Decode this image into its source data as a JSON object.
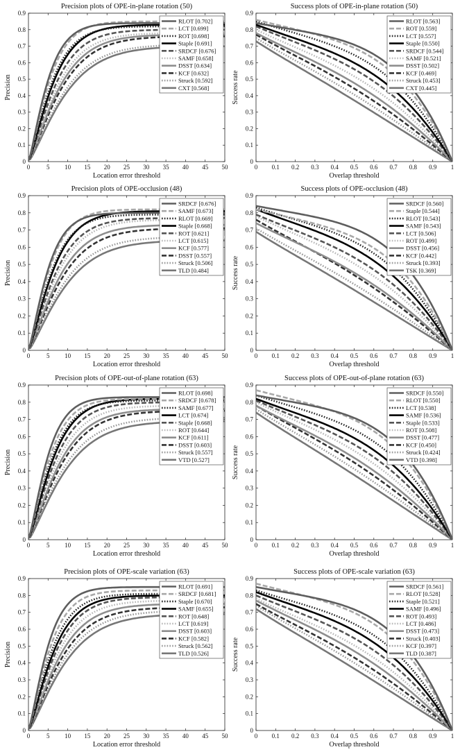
{
  "chart_data": [
    {
      "type": "line",
      "title": "Precision plots of OPE-in-plane rotation (50)",
      "xlabel": "Location error threshold",
      "ylabel": "Precision",
      "xlim": [
        0,
        50
      ],
      "ylim": [
        0,
        0.9
      ],
      "xticks": [
        "0",
        "5",
        "10",
        "15",
        "20",
        "25",
        "30",
        "35",
        "40",
        "45",
        "50"
      ],
      "yticks": [
        "0",
        "0.1",
        "0.2",
        "0.3",
        "0.4",
        "0.5",
        "0.6",
        "0.7",
        "0.8",
        "0.9"
      ],
      "legend_position": "top-right",
      "series": [
        {
          "name": "RLOT [0.702]",
          "color": "#5e5e5e",
          "dash": "solid",
          "final": 0.84
        },
        {
          "name": "LCT [0.699]",
          "color": "#a8a8a8",
          "dash": "dash",
          "final": 0.85
        },
        {
          "name": "ROT [0.698]",
          "color": "#262626",
          "dash": "dot",
          "final": 0.82
        },
        {
          "name": "Staple [0.691]",
          "color": "#000000",
          "dash": "solid",
          "final": 0.83
        },
        {
          "name": "SRDCF [0.676]",
          "color": "#555555",
          "dash": "dash",
          "final": 0.8
        },
        {
          "name": "SAMF [0.658]",
          "color": "#b8b8b8",
          "dash": "dot",
          "final": 0.78
        },
        {
          "name": "DSST [0.634]",
          "color": "#8e8e8e",
          "dash": "solid",
          "final": 0.77
        },
        {
          "name": "KCF [0.632]",
          "color": "#333333",
          "dash": "dash",
          "final": 0.76
        },
        {
          "name": "Struck [0.592]",
          "color": "#9a9a9a",
          "dash": "dot",
          "final": 0.71
        },
        {
          "name": "CXT [0.568]",
          "color": "#777777",
          "dash": "solid",
          "final": 0.7
        }
      ]
    },
    {
      "type": "line",
      "title": "Success plots of OPE-in-plane rotation (50)",
      "xlabel": "Overlap threshold",
      "ylabel": "Success rate",
      "xlim": [
        0,
        1
      ],
      "ylim": [
        0,
        0.9
      ],
      "xticks": [
        "0",
        "0.1",
        "0.2",
        "0.3",
        "0.4",
        "0.5",
        "0.6",
        "0.7",
        "0.8",
        "0.9",
        "1"
      ],
      "yticks": [
        "0",
        "0.1",
        "0.2",
        "0.3",
        "0.4",
        "0.5",
        "0.6",
        "0.7",
        "0.8",
        "0.9"
      ],
      "legend_position": "top-right",
      "series": [
        {
          "name": "RLOT [0.563]",
          "color": "#5e5e5e",
          "dash": "solid",
          "start": 0.84
        },
        {
          "name": "ROT [0.559]",
          "color": "#a8a8a8",
          "dash": "dash",
          "start": 0.86
        },
        {
          "name": "LCT [0.557]",
          "color": "#262626",
          "dash": "dot",
          "start": 0.85
        },
        {
          "name": "Staple [0.550]",
          "color": "#000000",
          "dash": "solid",
          "start": 0.83
        },
        {
          "name": "SRDCF [0.544]",
          "color": "#555555",
          "dash": "dash",
          "start": 0.82
        },
        {
          "name": "SAMF [0.521]",
          "color": "#b8b8b8",
          "dash": "dot",
          "start": 0.8
        },
        {
          "name": "DSST [0.502]",
          "color": "#8e8e8e",
          "dash": "solid",
          "start": 0.78
        },
        {
          "name": "KCF [0.469]",
          "color": "#333333",
          "dash": "dash",
          "start": 0.77
        },
        {
          "name": "Struck [0.453]",
          "color": "#9a9a9a",
          "dash": "dot",
          "start": 0.75
        },
        {
          "name": "CXT [0.445]",
          "color": "#777777",
          "dash": "solid",
          "start": 0.73
        }
      ]
    },
    {
      "type": "line",
      "title": "Precision plots of OPE-occlusion (48)",
      "xlabel": "Location error threshold",
      "ylabel": "Precision",
      "xlim": [
        0,
        50
      ],
      "ylim": [
        0,
        0.9
      ],
      "xticks": [
        "0",
        "5",
        "10",
        "15",
        "20",
        "25",
        "30",
        "35",
        "40",
        "45",
        "50"
      ],
      "yticks": [
        "0",
        "0.1",
        "0.2",
        "0.3",
        "0.4",
        "0.5",
        "0.6",
        "0.7",
        "0.8",
        "0.9"
      ],
      "legend_position": "top-right",
      "series": [
        {
          "name": "SRDCF [0.676]",
          "color": "#5e5e5e",
          "dash": "solid",
          "final": 0.8
        },
        {
          "name": "SAMF [0.673]",
          "color": "#a8a8a8",
          "dash": "dash",
          "final": 0.82
        },
        {
          "name": "RLOT [0.669]",
          "color": "#262626",
          "dash": "dot",
          "final": 0.79
        },
        {
          "name": "Staple [0.668]",
          "color": "#000000",
          "dash": "solid",
          "final": 0.81
        },
        {
          "name": "ROT [0.621]",
          "color": "#555555",
          "dash": "dash",
          "final": 0.77
        },
        {
          "name": "LCT [0.615]",
          "color": "#b8b8b8",
          "dash": "dot",
          "final": 0.76
        },
        {
          "name": "KCF [0.577]",
          "color": "#8e8e8e",
          "dash": "solid",
          "final": 0.73
        },
        {
          "name": "DSST [0.557]",
          "color": "#333333",
          "dash": "dash",
          "final": 0.71
        },
        {
          "name": "Struck [0.506]",
          "color": "#9a9a9a",
          "dash": "dot",
          "final": 0.66
        },
        {
          "name": "TLD [0.484]",
          "color": "#777777",
          "dash": "solid",
          "final": 0.64
        }
      ]
    },
    {
      "type": "line",
      "title": "Success plots of OPE-occlusion (48)",
      "xlabel": "Overlap threshold",
      "ylabel": "Success rate",
      "xlim": [
        0,
        1
      ],
      "ylim": [
        0,
        0.9
      ],
      "xticks": [
        "0",
        "0.1",
        "0.2",
        "0.3",
        "0.4",
        "0.5",
        "0.6",
        "0.7",
        "0.8",
        "0.9",
        "1"
      ],
      "yticks": [
        "0",
        "0.1",
        "0.2",
        "0.3",
        "0.4",
        "0.5",
        "0.6",
        "0.7",
        "0.8",
        "0.9"
      ],
      "legend_position": "top-right",
      "series": [
        {
          "name": "SRDCF [0.560]",
          "color": "#5e5e5e",
          "dash": "solid",
          "start": 0.84
        },
        {
          "name": "Staple [0.544]",
          "color": "#a8a8a8",
          "dash": "dash",
          "start": 0.82
        },
        {
          "name": "RLOT [0.543]",
          "color": "#262626",
          "dash": "dot",
          "start": 0.83
        },
        {
          "name": "SAMF [0.543]",
          "color": "#000000",
          "dash": "solid",
          "start": 0.82
        },
        {
          "name": "LCT [0.506]",
          "color": "#555555",
          "dash": "dash",
          "start": 0.79
        },
        {
          "name": "ROT [0.499]",
          "color": "#b8b8b8",
          "dash": "dot",
          "start": 0.78
        },
        {
          "name": "DSST [0.456]",
          "color": "#8e8e8e",
          "dash": "solid",
          "start": 0.74
        },
        {
          "name": "KCF [0.442]",
          "color": "#333333",
          "dash": "dash",
          "start": 0.76
        },
        {
          "name": "Struck [0.393]",
          "color": "#9a9a9a",
          "dash": "dot",
          "start": 0.71
        },
        {
          "name": "TSK [0.369]",
          "color": "#777777",
          "dash": "solid",
          "start": 0.69
        }
      ]
    },
    {
      "type": "line",
      "title": "Precision plots of OPE-out-of-plane rotation (63)",
      "xlabel": "Location error threshold",
      "ylabel": "Precision",
      "xlim": [
        0,
        50
      ],
      "ylim": [
        0,
        0.9
      ],
      "xticks": [
        "0",
        "5",
        "10",
        "15",
        "20",
        "25",
        "30",
        "35",
        "40",
        "45",
        "50"
      ],
      "yticks": [
        "0",
        "0.1",
        "0.2",
        "0.3",
        "0.4",
        "0.5",
        "0.6",
        "0.7",
        "0.8",
        "0.9"
      ],
      "legend_position": "top-right",
      "series": [
        {
          "name": "RLOT [0.698]",
          "color": "#5e5e5e",
          "dash": "solid",
          "final": 0.83
        },
        {
          "name": "SRDCF [0.678]",
          "color": "#a8a8a8",
          "dash": "dash",
          "final": 0.82
        },
        {
          "name": "SAMF [0.677]",
          "color": "#262626",
          "dash": "dot",
          "final": 0.81
        },
        {
          "name": "LCT [0.674]",
          "color": "#000000",
          "dash": "solid",
          "final": 0.82
        },
        {
          "name": "Staple [0.668]",
          "color": "#555555",
          "dash": "dash",
          "final": 0.8
        },
        {
          "name": "ROT [0.644]",
          "color": "#b8b8b8",
          "dash": "dot",
          "final": 0.78
        },
        {
          "name": "KCF [0.611]",
          "color": "#8e8e8e",
          "dash": "solid",
          "final": 0.76
        },
        {
          "name": "DSST [0.603]",
          "color": "#333333",
          "dash": "dash",
          "final": 0.75
        },
        {
          "name": "Struck [0.557]",
          "color": "#9a9a9a",
          "dash": "dot",
          "final": 0.71
        },
        {
          "name": "VTD [0.527]",
          "color": "#777777",
          "dash": "solid",
          "final": 0.69
        }
      ]
    },
    {
      "type": "line",
      "title": "Success plots of OPE-out-of-plane rotation (63)",
      "xlabel": "Overlap threshold",
      "ylabel": "Success rate",
      "xlim": [
        0,
        1
      ],
      "ylim": [
        0,
        0.9
      ],
      "xticks": [
        "0",
        "0.1",
        "0.2",
        "0.3",
        "0.4",
        "0.5",
        "0.6",
        "0.7",
        "0.8",
        "0.9",
        "1"
      ],
      "yticks": [
        "0",
        "0.1",
        "0.2",
        "0.3",
        "0.4",
        "0.5",
        "0.6",
        "0.7",
        "0.8",
        "0.9"
      ],
      "legend_position": "top-right",
      "series": [
        {
          "name": "SRDCF [0.550]",
          "color": "#5e5e5e",
          "dash": "solid",
          "start": 0.84
        },
        {
          "name": "RLOT [0.550]",
          "color": "#a8a8a8",
          "dash": "dash",
          "start": 0.87
        },
        {
          "name": "LCT [0.538]",
          "color": "#262626",
          "dash": "dot",
          "start": 0.84
        },
        {
          "name": "SAMF [0.536]",
          "color": "#000000",
          "dash": "solid",
          "start": 0.82
        },
        {
          "name": "Staple [0.533]",
          "color": "#555555",
          "dash": "dash",
          "start": 0.81
        },
        {
          "name": "ROT [0.508]",
          "color": "#b8b8b8",
          "dash": "dot",
          "start": 0.8
        },
        {
          "name": "DSST [0.477]",
          "color": "#8e8e8e",
          "dash": "solid",
          "start": 0.78
        },
        {
          "name": "KCF [0.450]",
          "color": "#333333",
          "dash": "dash",
          "start": 0.78
        },
        {
          "name": "Struck [0.424]",
          "color": "#9a9a9a",
          "dash": "dot",
          "start": 0.76
        },
        {
          "name": "VTD [0.398]",
          "color": "#777777",
          "dash": "solid",
          "start": 0.74
        }
      ]
    },
    {
      "type": "line",
      "title": "Precision plots of OPE-scale variation (63)",
      "xlabel": "Location error threshold",
      "ylabel": "Precision",
      "xlim": [
        0,
        50
      ],
      "ylim": [
        0,
        0.9
      ],
      "xticks": [
        "0",
        "5",
        "10",
        "15",
        "20",
        "25",
        "30",
        "35",
        "40",
        "45",
        "50"
      ],
      "yticks": [
        "0",
        "0.1",
        "0.2",
        "0.3",
        "0.4",
        "0.5",
        "0.6",
        "0.7",
        "0.8",
        "0.9"
      ],
      "legend_position": "top-right",
      "series": [
        {
          "name": "RLOT [0.691]",
          "color": "#5e5e5e",
          "dash": "solid",
          "final": 0.85
        },
        {
          "name": "SRDCF [0.681]",
          "color": "#a8a8a8",
          "dash": "dash",
          "final": 0.83
        },
        {
          "name": "Staple [0.670]",
          "color": "#262626",
          "dash": "dot",
          "final": 0.81
        },
        {
          "name": "SAMF [0.655]",
          "color": "#000000",
          "dash": "solid",
          "final": 0.8
        },
        {
          "name": "ROT [0.648]",
          "color": "#555555",
          "dash": "dash",
          "final": 0.79
        },
        {
          "name": "LCT [0.619]",
          "color": "#b8b8b8",
          "dash": "dot",
          "final": 0.77
        },
        {
          "name": "DSST [0.603]",
          "color": "#8e8e8e",
          "dash": "solid",
          "final": 0.75
        },
        {
          "name": "KCF [0.582]",
          "color": "#333333",
          "dash": "dash",
          "final": 0.73
        },
        {
          "name": "Struck [0.562]",
          "color": "#9a9a9a",
          "dash": "dot",
          "final": 0.71
        },
        {
          "name": "TLD [0.526]",
          "color": "#777777",
          "dash": "solid",
          "final": 0.69
        }
      ]
    },
    {
      "type": "line",
      "title": "Success plots of OPE-scale variation (63)",
      "xlabel": "Overlap threshold",
      "ylabel": "Success rate",
      "xlim": [
        0,
        1
      ],
      "ylim": [
        0,
        0.9
      ],
      "xticks": [
        "0",
        "0.1",
        "0.2",
        "0.3",
        "0.4",
        "0.5",
        "0.6",
        "0.7",
        "0.8",
        "0.9",
        "1"
      ],
      "yticks": [
        "0",
        "0.1",
        "0.2",
        "0.3",
        "0.4",
        "0.5",
        "0.6",
        "0.7",
        "0.8",
        "0.9"
      ],
      "legend_position": "top-right",
      "series": [
        {
          "name": "SRDCF [0.561]",
          "color": "#5e5e5e",
          "dash": "solid",
          "start": 0.85
        },
        {
          "name": "RLOT [0.528]",
          "color": "#a8a8a8",
          "dash": "dash",
          "start": 0.87
        },
        {
          "name": "Staple [0.521]",
          "color": "#262626",
          "dash": "dot",
          "start": 0.83
        },
        {
          "name": "SAMF [0.496]",
          "color": "#000000",
          "dash": "solid",
          "start": 0.82
        },
        {
          "name": "ROT [0.493]",
          "color": "#555555",
          "dash": "dash",
          "start": 0.8
        },
        {
          "name": "LCT [0.486]",
          "color": "#b8b8b8",
          "dash": "dot",
          "start": 0.78
        },
        {
          "name": "DSST [0.473]",
          "color": "#8e8e8e",
          "dash": "solid",
          "start": 0.77
        },
        {
          "name": "Struck [0.403]",
          "color": "#333333",
          "dash": "dash",
          "start": 0.75
        },
        {
          "name": "KCF [0.397]",
          "color": "#9a9a9a",
          "dash": "dot",
          "start": 0.74
        },
        {
          "name": "TLD [0.387]",
          "color": "#777777",
          "dash": "solid",
          "start": 0.72
        }
      ]
    }
  ]
}
